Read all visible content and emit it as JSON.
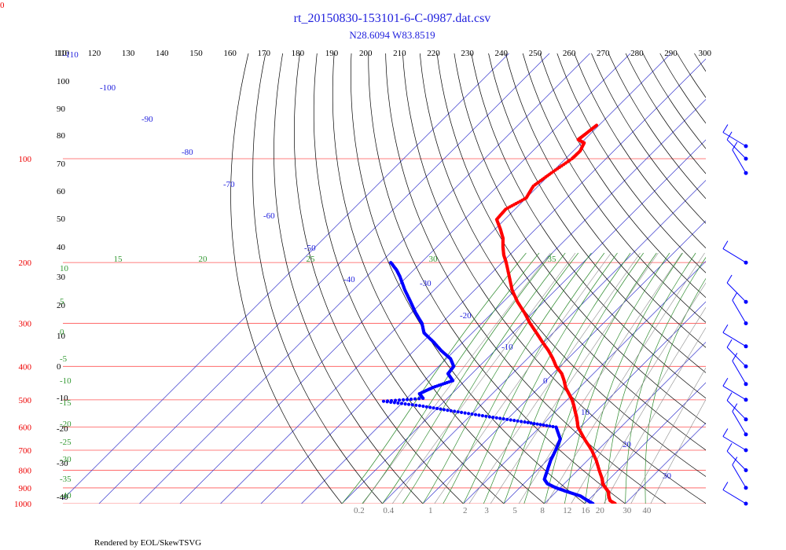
{
  "header": {
    "title": "rt_20150830-153101-6-C-0987.dat.csv",
    "subtitle": "N28.6094 W83.8519",
    "corner_label": "0"
  },
  "footer": {
    "text": "Rendered by EOL/SkewTSVG"
  },
  "colors": {
    "temperature": "#ff0000",
    "dewpoint": "#0000ff",
    "isobar": "#ff5555",
    "isotherm": "#3333cc",
    "dry_adiabat": "#000000",
    "moist_adiabat": "#2e8b2e",
    "mixing_ratio": "#888888",
    "label_blue": "#2222dd",
    "label_red": "#ee0000",
    "label_green": "#339933"
  },
  "chart_data": {
    "type": "skew-t",
    "title": "rt_20150830-153101-6-C-0987.dat.csv",
    "subtitle": "N28.6094 W83.8519",
    "isobars_hpa": [
      100,
      200,
      300,
      400,
      500,
      600,
      700,
      800,
      900,
      1000
    ],
    "isotherms_c": [
      -110,
      -100,
      -90,
      -80,
      -70,
      -60,
      -50,
      -40,
      -30,
      -20,
      -10,
      0,
      10,
      20,
      30
    ],
    "dry_adiabats_theta_c": [
      110,
      120,
      130,
      140,
      150,
      160,
      170,
      180,
      190,
      200,
      210,
      220,
      230,
      240,
      250,
      260,
      270,
      280,
      290,
      300
    ],
    "dry_adiabat_left_labels": [
      110,
      100,
      90,
      80,
      70,
      60,
      50,
      40,
      30,
      20,
      10,
      0,
      -10,
      -20,
      -30,
      -40
    ],
    "moist_adiabats_thetae_c": [
      -40,
      -35,
      -30,
      -25,
      -20,
      -15,
      -10,
      -5,
      0,
      5,
      10,
      15,
      20,
      25,
      30,
      35
    ],
    "moist_adiabat_top_labels": [
      15,
      20,
      25,
      30,
      35
    ],
    "moist_adiabat_left_labels": [
      10,
      5,
      0,
      -5,
      -10,
      -15,
      -20,
      -25,
      -30,
      -35,
      -40
    ],
    "mixing_ratio_gkg": [
      0.2,
      0.4,
      1,
      2,
      3,
      5,
      8,
      12,
      16,
      20,
      30,
      40
    ],
    "wind_barb_pressures_hpa": [
      80,
      100,
      110,
      200,
      260,
      300,
      350,
      400,
      450,
      500,
      570,
      630,
      700,
      800,
      900,
      1000
    ],
    "temperature_profile": {
      "name": "Temperature",
      "pressure_hpa": [
        1000,
        980,
        950,
        925,
        900,
        875,
        850,
        800,
        750,
        700,
        650,
        600,
        580,
        560,
        540,
        520,
        500,
        480,
        460,
        440,
        420,
        400,
        380,
        360,
        340,
        320,
        300,
        280,
        260,
        240,
        220,
        200,
        190,
        180,
        170,
        160,
        150,
        140,
        130,
        120,
        110,
        100,
        95,
        90,
        88,
        85,
        80
      ],
      "temperature_c": [
        27.5,
        25.5,
        24.0,
        23.0,
        21.2,
        19.5,
        18.3,
        15.3,
        12.2,
        8.5,
        4.0,
        -0.6,
        -2.0,
        -3.5,
        -5.2,
        -6.9,
        -8.8,
        -11.1,
        -13.5,
        -15.5,
        -17.8,
        -21.0,
        -23.7,
        -26.8,
        -30.4,
        -34.1,
        -38.1,
        -42.0,
        -46.5,
        -50.8,
        -54.7,
        -59.0,
        -61.5,
        -63.7,
        -65.8,
        -68.7,
        -72.0,
        -72.3,
        -70.0,
        -71.2,
        -70.0,
        -68.4,
        -68.3,
        -69.3,
        -71.6,
        -71.2,
        -70.6
      ]
    },
    "dewpoint_profile": {
      "name": "Dewpoint",
      "pressure_hpa": [
        1000,
        980,
        950,
        925,
        900,
        875,
        850,
        800,
        750,
        700,
        650,
        600,
        580,
        560,
        540,
        520,
        505,
        495,
        480,
        460,
        440,
        420,
        400,
        380,
        360,
        340,
        320,
        300,
        280,
        260,
        240,
        220,
        210,
        200
      ],
      "dewpoint_c": [
        22.0,
        20.0,
        17.0,
        13.0,
        9.0,
        5.8,
        4.0,
        2.5,
        0.9,
        -0.4,
        -2.0,
        -6.0,
        -15.0,
        -25.0,
        -35.0,
        -45.0,
        -55.0,
        -46.0,
        -48.0,
        -46.2,
        -43.0,
        -45.9,
        -46.3,
        -49.0,
        -53.3,
        -57.3,
        -61.9,
        -64.8,
        -68.9,
        -72.9,
        -77.3,
        -81.7,
        -84.3,
        -87.5
      ]
    }
  }
}
